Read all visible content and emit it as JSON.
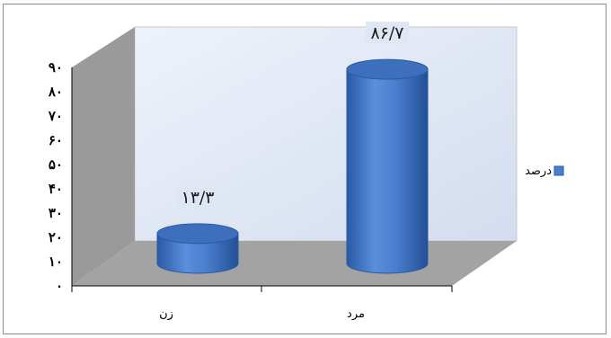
{
  "chart_data": {
    "type": "bar",
    "style": "3d-cylinder",
    "categories": [
      "زن",
      "مرد"
    ],
    "series": [
      {
        "name": "درصد",
        "values": [
          13.3,
          86.7
        ]
      }
    ],
    "data_labels": [
      "۱۳/۳",
      "۸۶/۷"
    ],
    "y_ticks": [
      "۰",
      "۱۰",
      "۲۰",
      "۳۰",
      "۴۰",
      "۵۰",
      "۶۰",
      "۷۰",
      "۸۰",
      "۹۰"
    ],
    "ylim": [
      0,
      90
    ],
    "grid": false,
    "legend_position": "right",
    "title": "",
    "xlabel": "",
    "ylabel": "",
    "colors": {
      "bar": "#4a7fcf",
      "bar_dark": "#2a5aa5",
      "bar_top": "#3e6fbd",
      "back_wall": "#dde5f3",
      "side_wall": "#9a9a9a",
      "floor": "#a3a3a3"
    }
  }
}
